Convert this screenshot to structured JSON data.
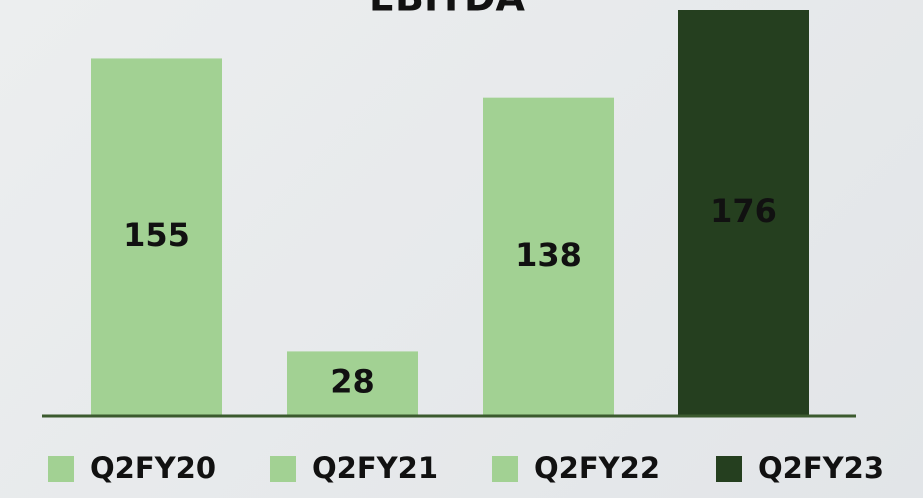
{
  "chart_data": {
    "type": "bar",
    "title": "EBITDA",
    "categories": [
      "Q2FY20",
      "Q2FY21",
      "Q2FY22",
      "Q2FY23"
    ],
    "values": [
      155,
      28,
      138,
      176
    ],
    "colors": [
      "#a2d193",
      "#a2d193",
      "#a2d193",
      "#253f1f"
    ],
    "legend": "bottom"
  }
}
